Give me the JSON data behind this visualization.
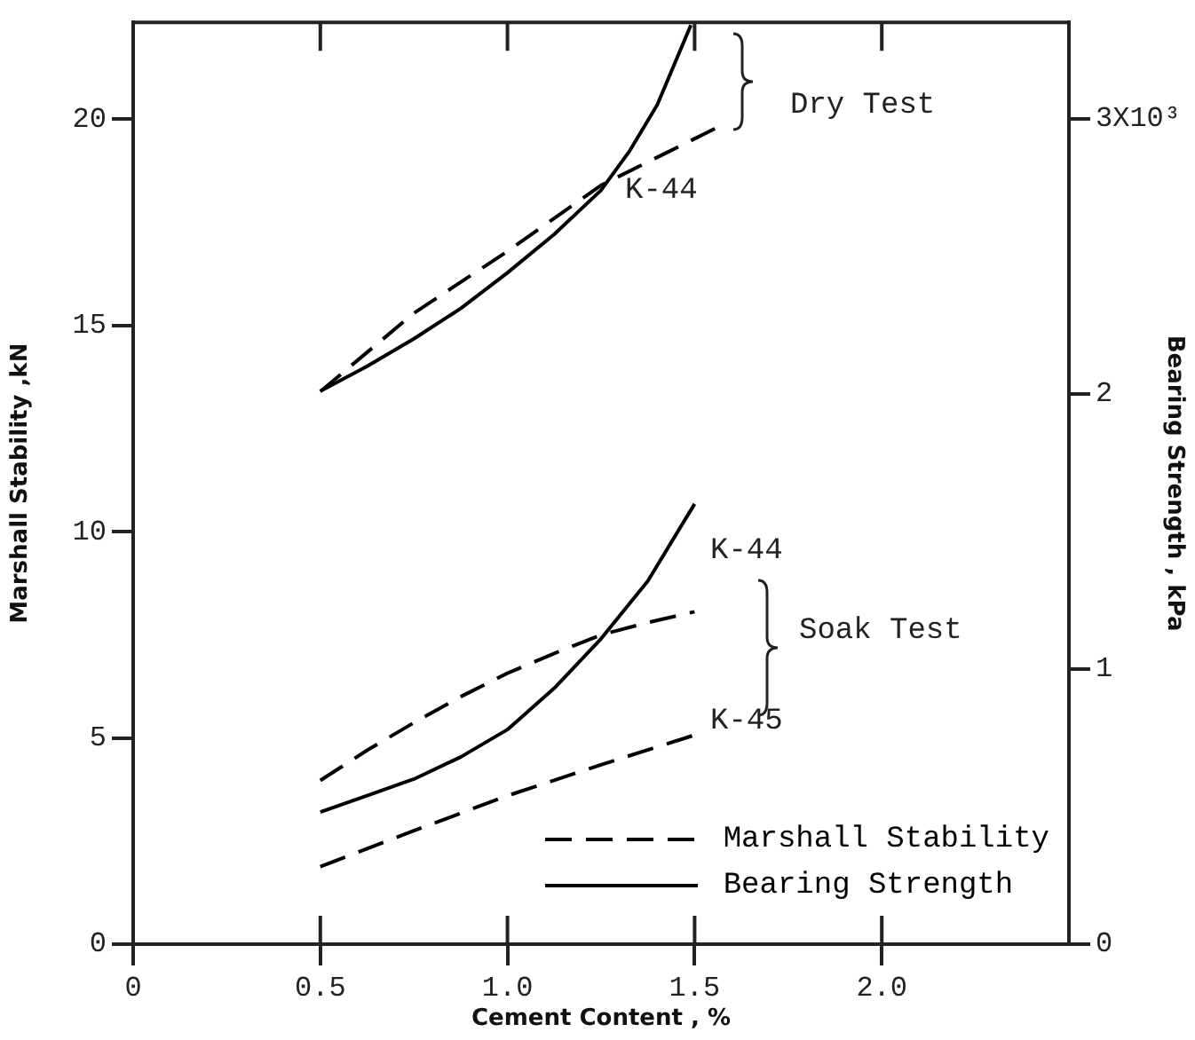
{
  "chart_data": {
    "type": "line",
    "xlabel": "Cement Content , %",
    "ylabel": "Marshall Stability ,kN",
    "y2label": "Bearing Strength , kPa",
    "xlim": [
      0,
      2.5
    ],
    "xticks": [
      0,
      0.5,
      {
        "value": 1,
        "label": "1.0"
      },
      1.5,
      {
        "value": 2,
        "label": "2.0"
      }
    ],
    "ylim": [
      0,
      22.35
    ],
    "yticks": [
      0,
      5,
      10,
      15,
      20
    ],
    "y2lim": [
      0,
      3.35
    ],
    "y2ticks": [
      0,
      1,
      2,
      {
        "value": 3,
        "label": "3X10³"
      }
    ],
    "grid": false,
    "legend": "bottom right",
    "marker": "none",
    "series": [
      {
        "name": "Marshall Stability",
        "color": "#000000",
        "line_style": "dashed",
        "axis": "y",
        "x": [
          0.5,
          0.75,
          1.0,
          1.25,
          1.56
        ],
        "values": [
          13.4,
          15.3,
          16.8,
          18.4,
          19.8
        ]
      },
      {
        "name": "Bearing Strength",
        "color": "#000000",
        "line_style": "solid",
        "axis": "y2",
        "x": [
          0.5,
          0.625,
          0.75,
          0.875,
          1.0,
          1.125,
          1.25,
          1.325,
          1.4,
          1.49
        ],
        "values": [
          2.01,
          2.1,
          2.2,
          2.31,
          2.44,
          2.58,
          2.74,
          2.88,
          3.05,
          3.34
        ]
      },
      {
        "color": "#000000",
        "line_style": "dashed",
        "axis": "y",
        "x": [
          0.5,
          0.625,
          0.75,
          0.875,
          1.0,
          1.125,
          1.25,
          1.375,
          1.5
        ],
        "values": [
          3.97,
          4.7,
          5.37,
          6.0,
          6.57,
          7.05,
          7.5,
          7.8,
          8.06
        ]
      },
      {
        "color": "#000000",
        "line_style": "dashed",
        "axis": "y",
        "x": [
          0.5,
          0.75,
          1.0,
          1.25,
          1.5
        ],
        "values": [
          1.88,
          2.75,
          3.6,
          4.35,
          5.07
        ]
      },
      {
        "color": "#000000",
        "line_style": "solid",
        "axis": "y2",
        "x": [
          0.5,
          0.625,
          0.75,
          0.875,
          1.0,
          1.125,
          1.25,
          1.375,
          1.5
        ],
        "values": [
          0.48,
          0.54,
          0.6,
          0.68,
          0.78,
          0.93,
          1.11,
          1.32,
          1.6
        ]
      }
    ],
    "annotations": [
      "Dry Test",
      "Soak Test",
      "K-44",
      "K-44",
      "K-45"
    ]
  }
}
